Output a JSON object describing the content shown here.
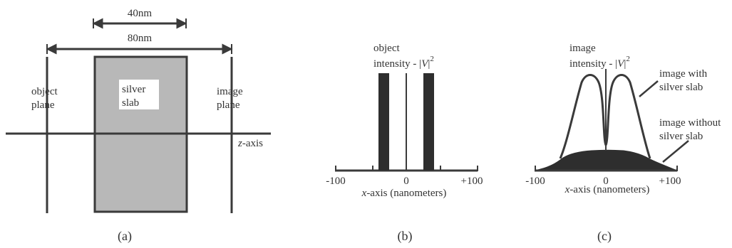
{
  "panel_a": {
    "dim_40": "40nm",
    "dim_80": "80nm",
    "object_plane": [
      "object",
      "plane"
    ],
    "slab": [
      "silver",
      "slab"
    ],
    "image_plane": [
      "image",
      "plane"
    ],
    "z_axis_var": "z",
    "z_axis_rest": "-axis",
    "caption": "(a)"
  },
  "panel_b": {
    "title_line1": "object",
    "title_line2_prefix": "intensity - ",
    "v_symbol": "V",
    "exponent": "2",
    "tick_left": "-100",
    "tick_zero": "0",
    "tick_right": "+100",
    "axis_var": "x",
    "axis_rest": "-axis (nanometers)",
    "caption": "(b)"
  },
  "panel_c": {
    "title_line1": "image",
    "title_line2_prefix": "intensity - ",
    "v_symbol": "V",
    "exponent": "2",
    "with_slab": [
      "image with",
      "silver slab"
    ],
    "without_slab": [
      "image without",
      "silver slab"
    ],
    "tick_left": "-100",
    "tick_zero": "0",
    "tick_right": "+100",
    "axis_var": "x",
    "axis_rest": "-axis (nanometers)",
    "caption": "(c)"
  },
  "colors": {
    "line": "#3a3a3a",
    "slab_fill": "#b8b8b8",
    "bar_fill": "#2e2e2e",
    "label_bg": "#ffffff"
  }
}
